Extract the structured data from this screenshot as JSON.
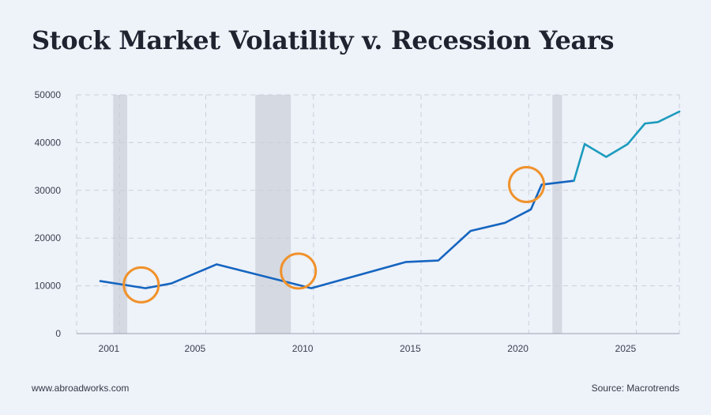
{
  "header": {
    "title": "Stock Market Volatility v. Recession Years"
  },
  "footer": {
    "left": "www.abroadworks.com",
    "right": "Source: Macrotrends"
  },
  "colors": {
    "background": "#eef2f9",
    "line_primary": "#1565c0",
    "line_recent": "#1b9bbd",
    "recession_band": "#d5d9e2",
    "highlight_circle": "#f0922b",
    "grid": "#c9cfdb"
  },
  "chart_data": {
    "type": "line",
    "title": "Stock Market Volatility v. Recession Years",
    "xlabel": "",
    "ylabel": "",
    "xlim": [
      1999.5,
      2027.5
    ],
    "ylim": [
      0,
      50000
    ],
    "x_ticks": [
      2001,
      2005,
      2010,
      2015,
      2020,
      2025
    ],
    "y_ticks": [
      0,
      10000,
      20000,
      30000,
      40000,
      50000
    ],
    "grid": true,
    "series": [
      {
        "x": [
          2000.6,
          2002.7,
          2003.9,
          2006.0,
          2010.4,
          2014.8,
          2016.3,
          2017.8,
          2019.4,
          2020.6,
          2021.1,
          2022.6
        ],
        "y": [
          11000,
          9500,
          10500,
          14500,
          9500,
          15000,
          15300,
          21500,
          23200,
          26000,
          31200,
          32000
        ],
        "color": "#1565c0"
      },
      {
        "x": [
          2022.6,
          2023.1,
          2024.1,
          2025.1,
          2025.9,
          2026.5,
          2027.5
        ],
        "y": [
          32000,
          39700,
          37000,
          39700,
          44000,
          44300,
          46500
        ],
        "color": "#1b9bbd"
      }
    ],
    "recession_bands": [
      [
        2001.2,
        2001.85
      ],
      [
        2007.8,
        2009.45
      ],
      [
        2021.6,
        2022.05
      ]
    ],
    "highlights": [
      {
        "x": 2002.5,
        "y": 10200
      },
      {
        "x": 2009.8,
        "y": 13100
      },
      {
        "x": 2020.4,
        "y": 31200
      }
    ]
  }
}
